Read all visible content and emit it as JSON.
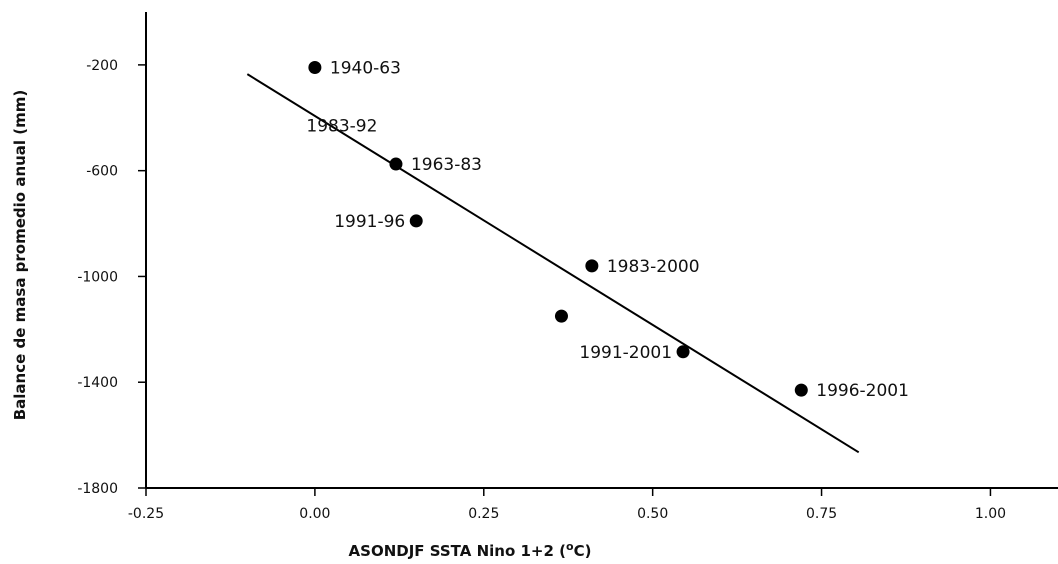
{
  "chart_data": {
    "type": "scatter",
    "title": "",
    "xlabel": "ASONDJF SSTA Nino 1+2 (",
    "xlabel_sup": "o",
    "xlabel_unit": "C)",
    "ylabel": "Balance de masa promedio anual (mm)",
    "xlim": [
      -0.25,
      1.1
    ],
    "ylim": [
      -1800,
      0
    ],
    "xticks": [
      -0.25,
      0.0,
      0.25,
      0.5,
      0.75,
      1.0
    ],
    "xtick_labels": [
      "-0.25",
      "0.00",
      "0.25",
      "0.50",
      "0.75",
      "1.00"
    ],
    "yticks": [
      -200,
      -600,
      -1000,
      -1400,
      -1800
    ],
    "ytick_labels": [
      "-200",
      "-600",
      "-1000",
      "-1400",
      "-1800"
    ],
    "grid": false,
    "points": [
      {
        "x": 0.0,
        "y": -210,
        "label": "1940-63",
        "label_side": "right"
      },
      {
        "x": 0.12,
        "y": -575,
        "label": "1963-83",
        "label_side": "right"
      },
      {
        "x": 0.15,
        "y": -790,
        "label": "1991-96",
        "label_side": "left"
      },
      {
        "x": 0.41,
        "y": -960,
        "label": "1983-2000",
        "label_side": "right"
      },
      {
        "x": 0.365,
        "y": -1150,
        "label": "",
        "label_side": "none"
      },
      {
        "x": 0.545,
        "y": -1285,
        "label": "1991-2001",
        "label_side": "left"
      },
      {
        "x": 0.72,
        "y": -1430,
        "label": "1996-2001",
        "label_side": "right"
      }
    ],
    "annotations": [
      {
        "text": "1983-92",
        "x": 0.04,
        "y": -430
      }
    ],
    "trendline": {
      "x1": -0.1,
      "y1": -235,
      "x2": 0.805,
      "y2": -1665
    }
  }
}
